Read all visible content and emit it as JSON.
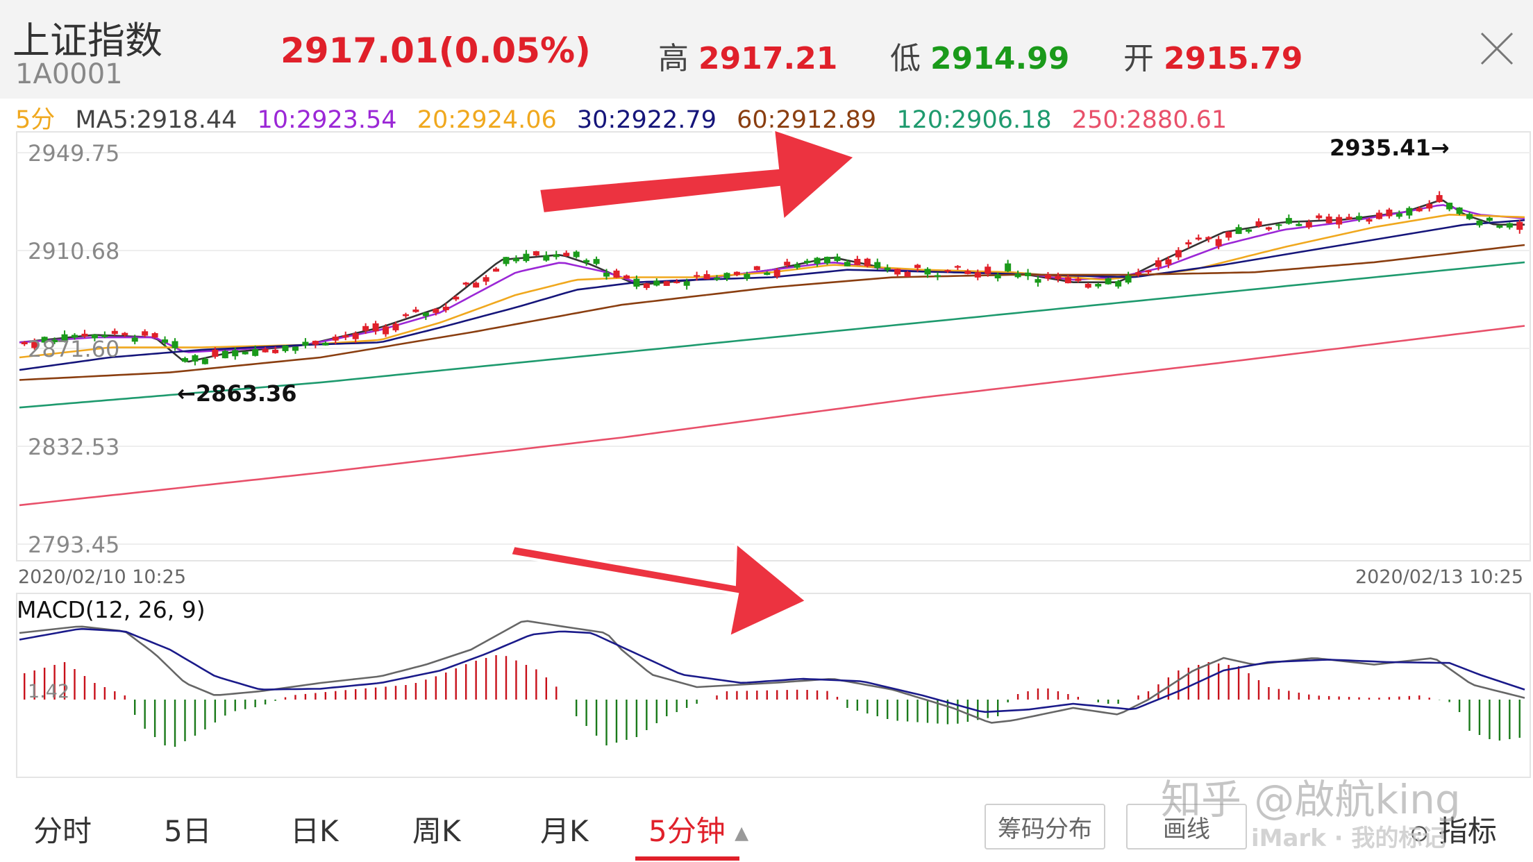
{
  "header": {
    "title": "上证指数",
    "code": "1A0001",
    "price": "2917.01",
    "change_pct": "(0.05%)",
    "high_label": "高",
    "high_value": "2917.21",
    "low_label": "低",
    "low_value": "2914.99",
    "open_label": "开",
    "open_value": "2915.79"
  },
  "ma_row": {
    "period": "5分",
    "ma5": "MA5:2918.44",
    "ma10": "10:2923.54",
    "ma20": "20:2924.06",
    "ma30": "30:2922.79",
    "ma60": "60:2912.89",
    "ma120": "120:2906.18",
    "ma250": "250:2880.61"
  },
  "chart_data": [
    {
      "type": "candlestick",
      "y_ticks": [
        "2949.75",
        "2910.68",
        "2871.60",
        "2832.53",
        "2793.45"
      ],
      "ylim": [
        2793.45,
        2949.75
      ],
      "x_start_label": "2020/02/10 10:25",
      "x_end_label": "2020/02/13 10:25",
      "annotations": {
        "high": "2935.41→",
        "low": "←2863.36"
      },
      "ma_series": [
        {
          "name": "MA5",
          "color": "#333333",
          "anchors": [
            [
              0,
              2874
            ],
            [
              0.05,
              2877
            ],
            [
              0.09,
              2876
            ],
            [
              0.11,
              2866
            ],
            [
              0.14,
              2870
            ],
            [
              0.19,
              2873
            ],
            [
              0.24,
              2880
            ],
            [
              0.28,
              2888
            ],
            [
              0.32,
              2907
            ],
            [
              0.36,
              2909
            ],
            [
              0.38,
              2905
            ],
            [
              0.41,
              2897
            ],
            [
              0.45,
              2899
            ],
            [
              0.5,
              2903
            ],
            [
              0.54,
              2908
            ],
            [
              0.58,
              2903
            ],
            [
              0.62,
              2902
            ],
            [
              0.66,
              2902
            ],
            [
              0.7,
              2898
            ],
            [
              0.73,
              2898
            ],
            [
              0.76,
              2907
            ],
            [
              0.8,
              2918
            ],
            [
              0.84,
              2922
            ],
            [
              0.88,
              2923
            ],
            [
              0.92,
              2926
            ],
            [
              0.945,
              2931
            ],
            [
              0.96,
              2925
            ],
            [
              0.98,
              2921
            ],
            [
              1.0,
              2921
            ]
          ]
        },
        {
          "name": "MA10",
          "color": "#9b27d6",
          "anchors": [
            [
              0,
              2874
            ],
            [
              0.05,
              2876
            ],
            [
              0.09,
              2876
            ],
            [
              0.11,
              2870
            ],
            [
              0.14,
              2871
            ],
            [
              0.19,
              2873
            ],
            [
              0.24,
              2879
            ],
            [
              0.28,
              2886
            ],
            [
              0.33,
              2902
            ],
            [
              0.36,
              2906
            ],
            [
              0.39,
              2902
            ],
            [
              0.41,
              2898
            ],
            [
              0.45,
              2899
            ],
            [
              0.5,
              2903
            ],
            [
              0.54,
              2906
            ],
            [
              0.58,
              2903
            ],
            [
              0.62,
              2902
            ],
            [
              0.66,
              2902
            ],
            [
              0.7,
              2899
            ],
            [
              0.73,
              2900
            ],
            [
              0.76,
              2904
            ],
            [
              0.8,
              2913
            ],
            [
              0.84,
              2919
            ],
            [
              0.88,
              2922
            ],
            [
              0.92,
              2926
            ],
            [
              0.945,
              2929
            ],
            [
              0.97,
              2925
            ],
            [
              1.0,
              2923.5
            ]
          ]
        },
        {
          "name": "MA20",
          "color": "#f0a81e",
          "anchors": [
            [
              0,
              2868
            ],
            [
              0.06,
              2872
            ],
            [
              0.12,
              2872
            ],
            [
              0.19,
              2873
            ],
            [
              0.24,
              2875
            ],
            [
              0.28,
              2882
            ],
            [
              0.33,
              2893
            ],
            [
              0.37,
              2899
            ],
            [
              0.41,
              2900
            ],
            [
              0.45,
              2900
            ],
            [
              0.5,
              2902
            ],
            [
              0.54,
              2905
            ],
            [
              0.6,
              2903
            ],
            [
              0.66,
              2902
            ],
            [
              0.72,
              2899
            ],
            [
              0.78,
              2903
            ],
            [
              0.84,
              2912
            ],
            [
              0.9,
              2920
            ],
            [
              0.95,
              2925
            ],
            [
              1.0,
              2924
            ]
          ]
        },
        {
          "name": "MA30",
          "color": "#15157a",
          "anchors": [
            [
              0,
              2863
            ],
            [
              0.06,
              2868
            ],
            [
              0.12,
              2871
            ],
            [
              0.19,
              2873
            ],
            [
              0.24,
              2874
            ],
            [
              0.28,
              2880
            ],
            [
              0.33,
              2888
            ],
            [
              0.37,
              2895
            ],
            [
              0.41,
              2898
            ],
            [
              0.45,
              2899
            ],
            [
              0.5,
              2900
            ],
            [
              0.55,
              2903
            ],
            [
              0.62,
              2902
            ],
            [
              0.68,
              2901
            ],
            [
              0.74,
              2900
            ],
            [
              0.8,
              2905
            ],
            [
              0.86,
              2911
            ],
            [
              0.92,
              2917
            ],
            [
              0.96,
              2921
            ],
            [
              1.0,
              2922.8
            ]
          ]
        },
        {
          "name": "MA60",
          "color": "#8a3e10",
          "anchors": [
            [
              0,
              2859
            ],
            [
              0.1,
              2862
            ],
            [
              0.2,
              2868
            ],
            [
              0.3,
              2878
            ],
            [
              0.4,
              2889
            ],
            [
              0.5,
              2896
            ],
            [
              0.58,
              2900
            ],
            [
              0.66,
              2901
            ],
            [
              0.74,
              2901
            ],
            [
              0.82,
              2902
            ],
            [
              0.9,
              2906
            ],
            [
              1.0,
              2912.9
            ]
          ]
        },
        {
          "name": "MA120",
          "color": "#1e9a6e",
          "anchors": [
            [
              0,
              2848
            ],
            [
              0.2,
              2858
            ],
            [
              0.4,
              2870
            ],
            [
              0.6,
              2882
            ],
            [
              0.8,
              2894
            ],
            [
              1.0,
              2906
            ]
          ]
        },
        {
          "name": "MA250",
          "color": "#e8506a",
          "anchors": [
            [
              0,
              2809
            ],
            [
              0.2,
              2822
            ],
            [
              0.4,
              2836
            ],
            [
              0.6,
              2852
            ],
            [
              0.8,
              2866
            ],
            [
              1.0,
              2880.6
            ]
          ]
        }
      ]
    },
    {
      "type": "macd",
      "title": "MACD(12, 26, 9)",
      "label_value": "1.42",
      "dif": [
        [
          0,
          0.8
        ],
        [
          0.04,
          0.88
        ],
        [
          0.07,
          0.82
        ],
        [
          0.09,
          0.55
        ],
        [
          0.11,
          0.2
        ],
        [
          0.13,
          0.05
        ],
        [
          0.16,
          0.1
        ],
        [
          0.2,
          0.2
        ],
        [
          0.24,
          0.28
        ],
        [
          0.27,
          0.42
        ],
        [
          0.3,
          0.6
        ],
        [
          0.32,
          0.8
        ],
        [
          0.335,
          0.95
        ],
        [
          0.36,
          0.88
        ],
        [
          0.39,
          0.8
        ],
        [
          0.4,
          0.6
        ],
        [
          0.42,
          0.3
        ],
        [
          0.45,
          0.15
        ],
        [
          0.5,
          0.2
        ],
        [
          0.54,
          0.25
        ],
        [
          0.58,
          0.12
        ],
        [
          0.62,
          -0.1
        ],
        [
          0.645,
          -0.28
        ],
        [
          0.66,
          -0.25
        ],
        [
          0.7,
          -0.1
        ],
        [
          0.73,
          -0.18
        ],
        [
          0.75,
          0.0
        ],
        [
          0.78,
          0.35
        ],
        [
          0.8,
          0.5
        ],
        [
          0.82,
          0.42
        ],
        [
          0.86,
          0.5
        ],
        [
          0.9,
          0.42
        ],
        [
          0.94,
          0.5
        ],
        [
          0.965,
          0.18
        ],
        [
          1.0,
          0.02
        ]
      ],
      "dea": [
        [
          0,
          0.72
        ],
        [
          0.04,
          0.85
        ],
        [
          0.07,
          0.82
        ],
        [
          0.1,
          0.6
        ],
        [
          0.13,
          0.28
        ],
        [
          0.16,
          0.12
        ],
        [
          0.2,
          0.13
        ],
        [
          0.24,
          0.2
        ],
        [
          0.28,
          0.35
        ],
        [
          0.31,
          0.55
        ],
        [
          0.34,
          0.78
        ],
        [
          0.36,
          0.82
        ],
        [
          0.38,
          0.8
        ],
        [
          0.41,
          0.55
        ],
        [
          0.44,
          0.3
        ],
        [
          0.48,
          0.2
        ],
        [
          0.52,
          0.25
        ],
        [
          0.56,
          0.22
        ],
        [
          0.6,
          0.05
        ],
        [
          0.64,
          -0.15
        ],
        [
          0.67,
          -0.12
        ],
        [
          0.7,
          -0.05
        ],
        [
          0.74,
          -0.12
        ],
        [
          0.77,
          0.1
        ],
        [
          0.8,
          0.35
        ],
        [
          0.83,
          0.45
        ],
        [
          0.87,
          0.48
        ],
        [
          0.91,
          0.45
        ],
        [
          0.95,
          0.44
        ],
        [
          0.97,
          0.3
        ],
        [
          1.0,
          0.12
        ]
      ],
      "hist": [
        [
          0,
          0.3
        ],
        [
          0.03,
          0.45
        ],
        [
          0.05,
          0.2
        ],
        [
          0.07,
          0.05
        ],
        [
          0.08,
          -0.3
        ],
        [
          0.1,
          -0.6
        ],
        [
          0.12,
          -0.4
        ],
        [
          0.14,
          -0.15
        ],
        [
          0.16,
          -0.08
        ],
        [
          0.18,
          0.05
        ],
        [
          0.22,
          0.12
        ],
        [
          0.26,
          0.18
        ],
        [
          0.28,
          0.3
        ],
        [
          0.3,
          0.45
        ],
        [
          0.32,
          0.55
        ],
        [
          0.345,
          0.35
        ],
        [
          0.36,
          0.1
        ],
        [
          0.37,
          -0.2
        ],
        [
          0.39,
          -0.55
        ],
        [
          0.41,
          -0.45
        ],
        [
          0.43,
          -0.2
        ],
        [
          0.45,
          -0.05
        ],
        [
          0.47,
          0.1
        ],
        [
          0.52,
          0.12
        ],
        [
          0.54,
          0.1
        ],
        [
          0.55,
          -0.1
        ],
        [
          0.58,
          -0.25
        ],
        [
          0.62,
          -0.3
        ],
        [
          0.65,
          -0.2
        ],
        [
          0.66,
          0.05
        ],
        [
          0.68,
          0.15
        ],
        [
          0.7,
          0.05
        ],
        [
          0.72,
          -0.05
        ],
        [
          0.73,
          -0.05
        ],
        [
          0.75,
          0.1
        ],
        [
          0.77,
          0.35
        ],
        [
          0.79,
          0.45
        ],
        [
          0.81,
          0.4
        ],
        [
          0.83,
          0.15
        ],
        [
          0.86,
          0.05
        ],
        [
          0.9,
          0.02
        ],
        [
          0.93,
          0.05
        ],
        [
          0.955,
          -0.05
        ],
        [
          0.96,
          -0.35
        ],
        [
          0.98,
          -0.5
        ],
        [
          1.0,
          -0.45
        ]
      ]
    }
  ],
  "footer": {
    "tab_fenshi": "分时",
    "tab_5ri": "5日",
    "tab_rik": "日K",
    "tab_zhouk": "周K",
    "tab_yuek": "月K",
    "tab_5fenzhong": "5分钟",
    "btn_chouma": "筹码分布",
    "btn_huaxian": "画线",
    "btn_zhibiao": "指标"
  },
  "watermark": {
    "zhihu": "知乎 @啟航king",
    "imark": "iMark · 我的标记"
  },
  "colors": {
    "up": "#e0202a",
    "down": "#1a9a1a",
    "arrow": "#ec3340"
  }
}
